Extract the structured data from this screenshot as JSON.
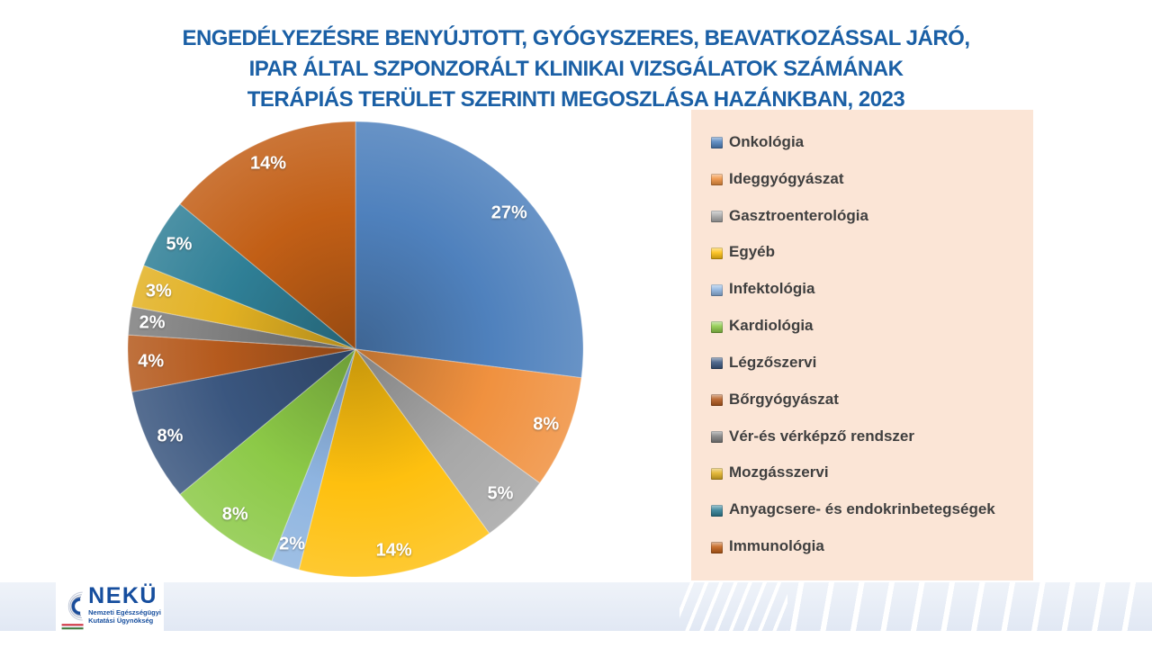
{
  "slide": {
    "title_lines": [
      "ENGEDÉLYEZÉSRE BENYÚJTOTT, GYÓGYSZERES, BEAVATKOZÁSSAL JÁRÓ,",
      "IPAR ÁLTAL SZPONZORÁLT KLINIKAI VIZSGÁLATOK SZÁMÁNAK",
      "TERÁPIÁS TERÜLET SZERINTI MEGOSZLÁSA HAZÁNKBAN, 2023"
    ],
    "title_color": "#1A5FA5"
  },
  "chart_data": {
    "type": "pie",
    "title": "Engedélyezésre benyújtott, gyógyszeres, beavatkozással járó, ipar által szponzorált klinikai vizsgálatok számának terápiás terület szerinti megoszlása hazánkban, 2023",
    "labels": [
      "Onkológia",
      "Ideggyógyászat",
      "Gasztroenterológia",
      "Egyéb",
      "Infektológia",
      "Kardiológia",
      "Légzőszervi",
      "Bőrgyógyászat",
      "Vér-és vérképző rendszer",
      "Mozgásszervi",
      "Anyagcsere- és endokrinbetegségek",
      "Immunológia"
    ],
    "values": [
      27,
      8,
      5,
      14,
      2,
      8,
      8,
      4,
      2,
      3,
      5,
      14
    ],
    "unit": "%",
    "data_labels": [
      "27%",
      "8%",
      "5%",
      "14%",
      "2%",
      "8%",
      "8%",
      "4%",
      "2%",
      "3%",
      "5%",
      "14%"
    ],
    "colors": [
      "#4F81BD",
      "#F0913F",
      "#A7A7A7",
      "#FEC00F",
      "#8EB4E0",
      "#8CC947",
      "#3A567F",
      "#B55A1D",
      "#7F7F7F",
      "#E2B123",
      "#2F7F96",
      "#C25F16"
    ],
    "start_angle_deg": 0,
    "direction": "clockwise",
    "legend_position": "right",
    "label_position_radius_ratio": 0.9
  },
  "legend": {
    "bg_color": "#FBE5D6",
    "text_color": "#3F3F3F"
  },
  "footer": {
    "logo_acronym": "NEKÜ",
    "logo_subtitle_lines": [
      "Nemzeti Egészségügyi",
      "Kutatási Ügynökség"
    ],
    "logo_text_color": "#164E9E",
    "band_color": "#E7EDF6"
  }
}
